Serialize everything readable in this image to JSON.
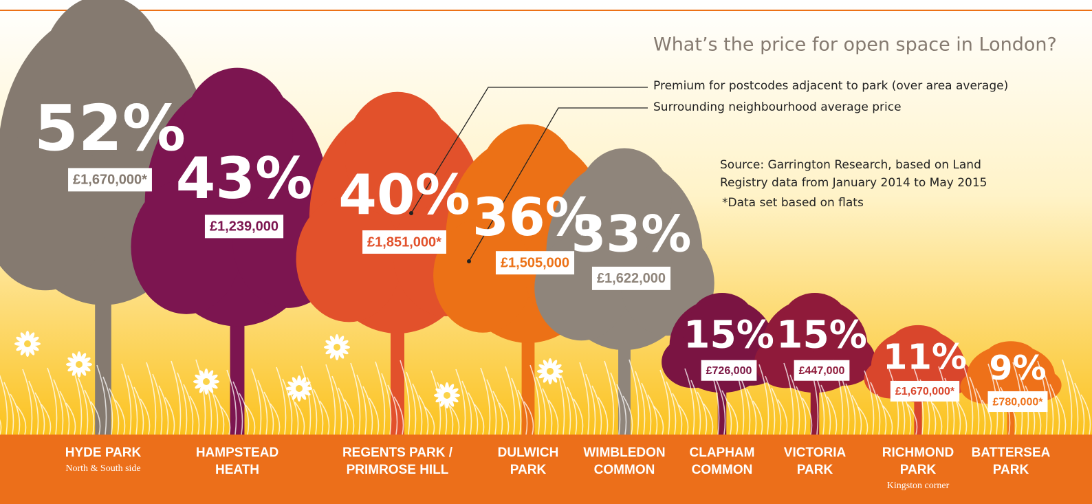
{
  "chart_data": {
    "type": "tree",
    "title": "What’s the price for open space in London?",
    "categories": [
      "HYDE PARK",
      "HAMPSTEAD HEATH",
      "REGENTS PARK / PRIMROSE HILL",
      "DULWICH PARK",
      "WIMBLEDON COMMON",
      "CLAPHAM COMMON",
      "VICTORIA PARK",
      "RICHMOND PARK",
      "BATTERSEA PARK"
    ],
    "category_notes": [
      "North & South side",
      null,
      null,
      null,
      null,
      null,
      null,
      "Kingston corner",
      null
    ],
    "colors": [
      "#857a70",
      "#7c1550",
      "#e2512b",
      "#ec7116",
      "#8f857b",
      "#7a1442",
      "#8f1a3a",
      "#d9462c",
      "#ee7119"
    ],
    "series": [
      {
        "name": "Premium for postcodes adjacent to park (over area average)",
        "values": [
          52,
          43,
          40,
          36,
          33,
          15,
          15,
          11,
          9
        ],
        "value_labels": [
          "52%",
          "43%",
          "40%",
          "36%",
          "33%",
          "15%",
          "15%",
          "11%",
          "9%"
        ]
      },
      {
        "name": "Surrounding neighbourhood average price",
        "values": [
          1670000,
          1239000,
          1851000,
          1505000,
          1622000,
          726000,
          447000,
          1670000,
          780000
        ],
        "value_labels": [
          "£1,670,000*",
          "£1,239,000",
          "£1,851,000*",
          "£1,505,000",
          "£1,622,000",
          "£726,000",
          "£447,000",
          "£1,670,000*",
          "£780,000*"
        ]
      }
    ],
    "source": [
      "Source: Garrington Research, based on Land",
      "Registry data from January 2014 to May 2015"
    ],
    "note": "*Data set based on flats"
  }
}
